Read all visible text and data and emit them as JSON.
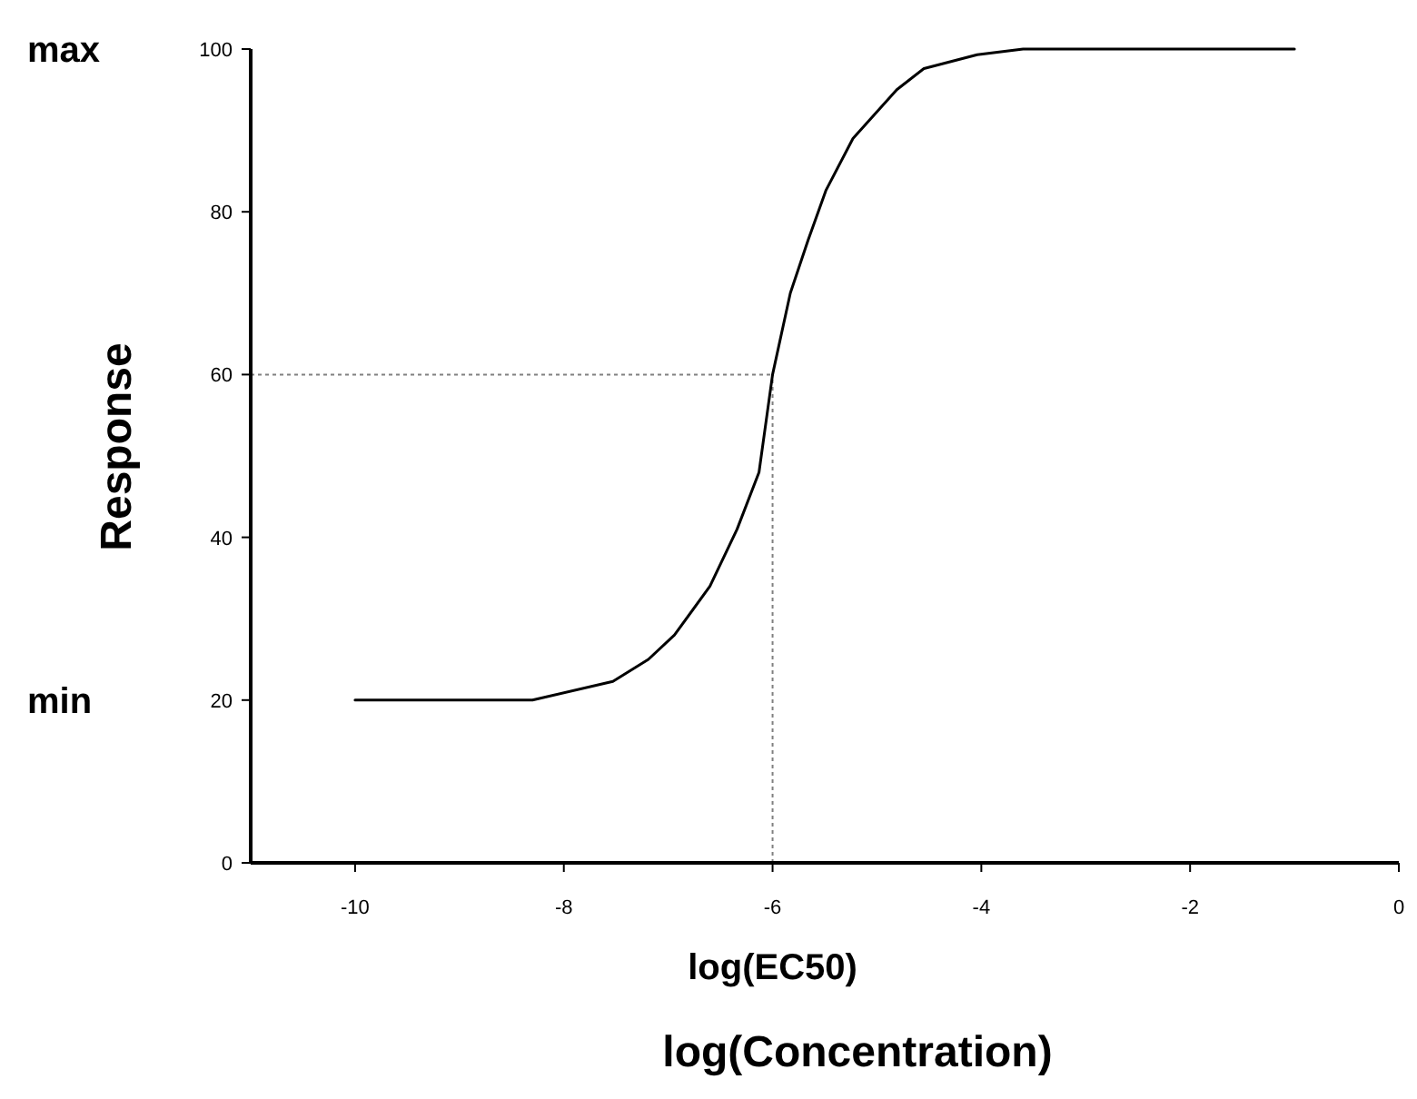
{
  "chart_data": {
    "type": "line",
    "xlabel": "log(Concentration)",
    "ylabel": "Response",
    "x": [
      -10,
      -9,
      -8.3,
      -7.53,
      -7.19,
      -6.94,
      -6.6,
      -6.34,
      -6.13,
      -6,
      -5.83,
      -5.66,
      -5.49,
      -5.23,
      -4.81,
      -4.55,
      -4.04,
      -3.6,
      -1
    ],
    "series": [
      {
        "color": "#000000",
        "values": [
          20,
          20,
          20,
          22.3,
          25,
          28,
          34,
          41,
          48,
          60,
          70,
          76.5,
          82.6,
          89,
          95,
          97.6,
          99.3,
          100,
          100
        ]
      }
    ],
    "xlim": [
      -11,
      0
    ],
    "xticks": [
      -10,
      -8,
      -6,
      -4,
      -2,
      0
    ],
    "ylim": [
      0,
      100
    ],
    "yticks": [
      0,
      20,
      40,
      60,
      80,
      100
    ],
    "ref_lines": [
      {
        "axis": "y",
        "value": 60,
        "color": "#808080",
        "line_style": "dotted"
      },
      {
        "axis": "x",
        "value": -6,
        "color": "#808080",
        "line_style": "dotted"
      }
    ],
    "annotations": [
      "max",
      "min",
      "log(EC50)"
    ],
    "grid": false,
    "marker": "none",
    "line_style": "solid"
  }
}
